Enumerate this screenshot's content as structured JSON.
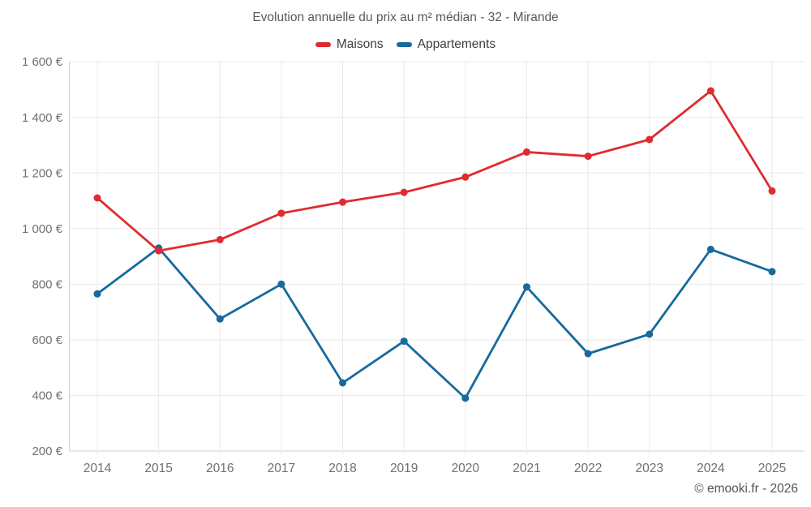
{
  "header": {
    "title": "Evolution annuelle du prix au m² médian - 32 - Mirande"
  },
  "footer": {
    "copyright": "© emooki.fr - 2026"
  },
  "colors": {
    "maisons": "#df2b2f",
    "appartements": "#17699e",
    "gridline": "#e9e9e9",
    "axis_line": "#cfcfcf",
    "axis_label": "#6f6f6f",
    "title_text": "#58595b",
    "legend_text": "#3d3d3d",
    "background": "#ffffff"
  },
  "chart_data": {
    "type": "line",
    "title": "Evolution annuelle du prix au m² médian - 32 - Mirande",
    "categories": [
      "2014",
      "2015",
      "2016",
      "2017",
      "2018",
      "2019",
      "2020",
      "2021",
      "2022",
      "2023",
      "2024",
      "2025"
    ],
    "series": [
      {
        "name": "Maisons",
        "color": "#df2b2f",
        "values": [
          1110,
          920,
          960,
          1055,
          1095,
          1130,
          1185,
          1275,
          1260,
          1320,
          1495,
          1135
        ]
      },
      {
        "name": "Appartements",
        "color": "#17699e",
        "values": [
          765,
          930,
          675,
          800,
          445,
          595,
          390,
          790,
          550,
          620,
          925,
          845
        ]
      }
    ],
    "xlabel": "",
    "ylabel": "",
    "unit": "€",
    "ylim": [
      200,
      1600
    ],
    "yticks": [
      {
        "value": 1600,
        "label": "1 600 €"
      },
      {
        "value": 1400,
        "label": "1 400 €"
      },
      {
        "value": 1200,
        "label": "1 200 €"
      },
      {
        "value": 1000,
        "label": "1 000 €"
      },
      {
        "value": 800,
        "label": "800 €"
      },
      {
        "value": 600,
        "label": "600 €"
      },
      {
        "value": 400,
        "label": "400 €"
      },
      {
        "value": 200,
        "label": "200 €"
      }
    ],
    "grid": true,
    "legend_position": "top",
    "marker": "circle",
    "annotations": []
  }
}
